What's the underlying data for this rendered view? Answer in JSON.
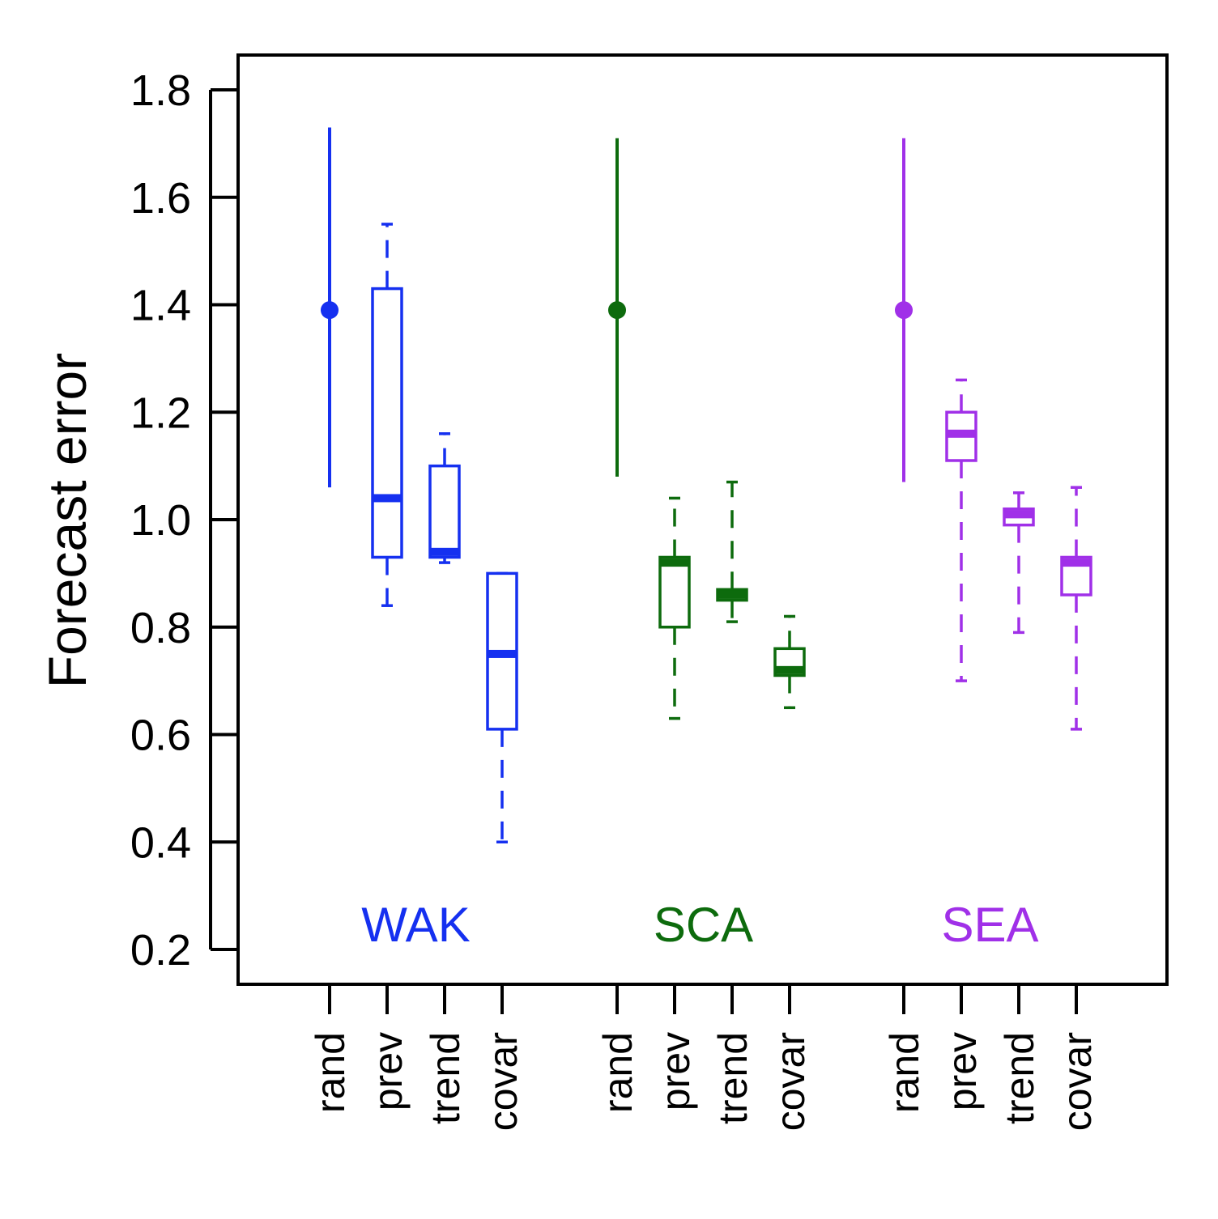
{
  "chart_data": {
    "type": "box",
    "ylabel": "Forecast error",
    "ylim": [
      0.2,
      1.86
    ],
    "yticks": [
      0.2,
      0.4,
      0.6,
      0.8,
      1.0,
      1.2,
      1.4,
      1.6,
      1.8
    ],
    "ytick_labels": [
      "0.2",
      "0.4",
      "0.6",
      "0.8",
      "1.0",
      "1.2",
      "1.4",
      "1.6",
      "1.8"
    ],
    "categories": [
      "rand",
      "prev",
      "trend",
      "covar"
    ],
    "grid": false,
    "groups": [
      {
        "name": "WAK",
        "color": "#1530f0",
        "rand": {
          "point": 1.39,
          "low": 1.06,
          "high": 1.73
        },
        "boxes": [
          {
            "category": "prev",
            "whisker_low": 0.84,
            "q1": 0.93,
            "median": 1.04,
            "q3": 1.43,
            "whisker_high": 1.55
          },
          {
            "category": "trend",
            "whisker_low": 0.92,
            "q1": 0.93,
            "median": 0.94,
            "q3": 1.1,
            "whisker_high": 1.16
          },
          {
            "category": "covar",
            "whisker_low": 0.4,
            "q1": 0.61,
            "median": 0.75,
            "q3": 0.9,
            "whisker_high": 0.9
          }
        ]
      },
      {
        "name": "SCA",
        "color": "#0d6b0d",
        "rand": {
          "point": 1.39,
          "low": 1.08,
          "high": 1.71
        },
        "boxes": [
          {
            "category": "prev",
            "whisker_low": 0.63,
            "q1": 0.8,
            "median": 0.92,
            "q3": 0.93,
            "whisker_high": 1.04
          },
          {
            "category": "trend",
            "whisker_low": 0.81,
            "q1": 0.85,
            "median": 0.86,
            "q3": 0.87,
            "whisker_high": 1.07
          },
          {
            "category": "covar",
            "whisker_low": 0.65,
            "q1": 0.71,
            "median": 0.72,
            "q3": 0.76,
            "whisker_high": 0.82
          }
        ]
      },
      {
        "name": "SEA",
        "color": "#a030e8",
        "rand": {
          "point": 1.39,
          "low": 1.07,
          "high": 1.71
        },
        "boxes": [
          {
            "category": "prev",
            "whisker_low": 0.7,
            "q1": 1.11,
            "median": 1.16,
            "q3": 1.2,
            "whisker_high": 1.26
          },
          {
            "category": "trend",
            "whisker_low": 0.79,
            "q1": 0.99,
            "median": 1.01,
            "q3": 1.02,
            "whisker_high": 1.05
          },
          {
            "category": "covar",
            "whisker_low": 0.61,
            "q1": 0.86,
            "median": 0.92,
            "q3": 0.93,
            "whisker_high": 1.06
          }
        ]
      }
    ]
  }
}
